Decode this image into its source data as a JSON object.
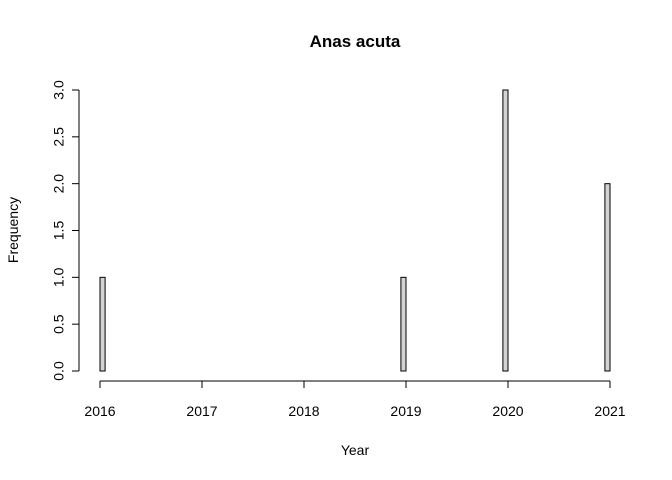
{
  "chart_data": {
    "type": "bar",
    "title": "Anas acuta",
    "xlabel": "Year",
    "ylabel": "Frequency",
    "xlim": [
      2016,
      2021
    ],
    "ylim": [
      0,
      3
    ],
    "x_ticks": [
      "2016",
      "2017",
      "2018",
      "2019",
      "2020",
      "2021"
    ],
    "y_ticks": [
      "0.0",
      "0.5",
      "1.0",
      "1.5",
      "2.0",
      "2.5",
      "3.0"
    ],
    "bin_width": 0.05,
    "bins": [
      {
        "start": 2016.0,
        "end": 2016.05,
        "count": 1
      },
      {
        "start": 2018.95,
        "end": 2019.0,
        "count": 1
      },
      {
        "start": 2019.95,
        "end": 2020.0,
        "count": 3
      },
      {
        "start": 2020.95,
        "end": 2021.0,
        "count": 2
      }
    ],
    "bar_fill": "#d3d3d3",
    "bar_stroke": "#000000",
    "grid": false,
    "legend": "none"
  }
}
